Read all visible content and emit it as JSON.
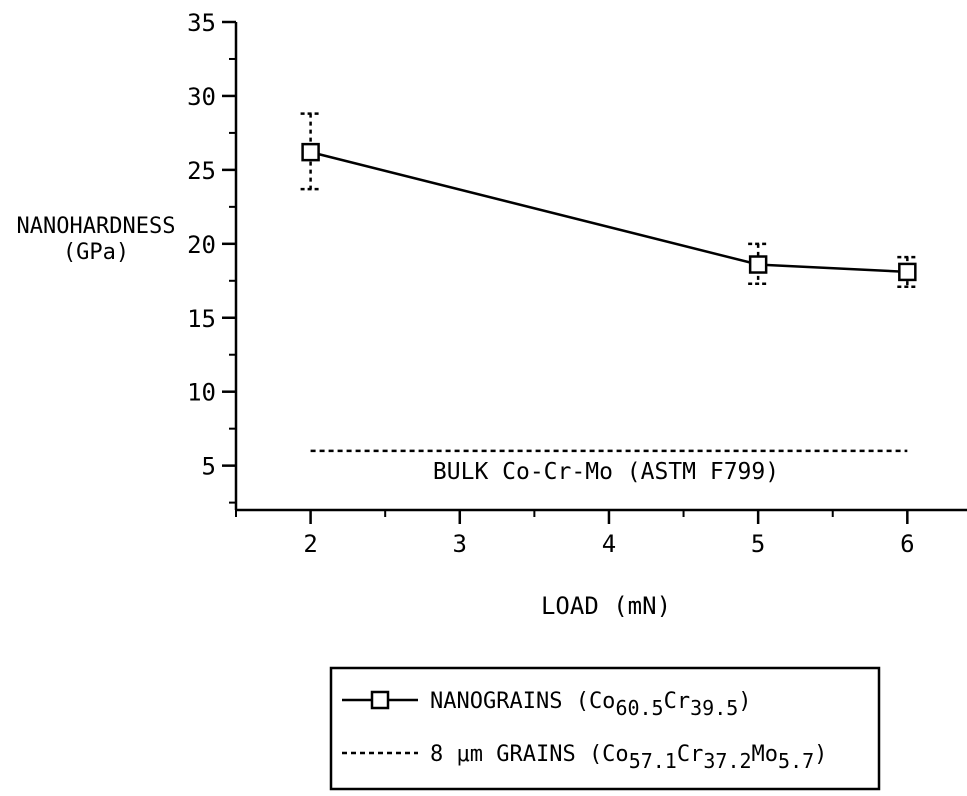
{
  "chart_data": {
    "type": "line",
    "ylabel_line1": "NANOHARDNESS",
    "ylabel_line2": "(GPa)",
    "xlabel": "LOAD (mN)",
    "xlim": [
      1.5,
      6.4
    ],
    "ylim": [
      2,
      35
    ],
    "x_ticks": [
      2,
      3,
      4,
      5,
      6
    ],
    "x_tick_labels": [
      "2",
      "3",
      "4",
      "5",
      "6"
    ],
    "y_ticks": [
      5,
      10,
      15,
      20,
      25,
      30,
      35
    ],
    "y_tick_labels": [
      "5",
      "10",
      "15",
      "20",
      "25",
      "30",
      "35"
    ],
    "grid": false,
    "legend_position": "bottom-center",
    "series": [
      {
        "style": "solid-square-markers",
        "x": [
          2,
          5,
          6
        ],
        "y": [
          26.2,
          18.6,
          18.1
        ],
        "error_low": [
          23.7,
          17.3,
          17.1
        ],
        "error_high": [
          28.8,
          20.0,
          19.1
        ]
      }
    ],
    "reference_line": {
      "style": "dashed",
      "y": 6,
      "x_start": 2,
      "x_end": 6,
      "label": "BULK Co-Cr-Mo (ASTM F799)"
    },
    "legend": [
      {
        "style": "solid-square",
        "label_prefix": "NANOGRAINS (Co",
        "parts": [
          {
            "text": "60.5",
            "sub": true
          },
          {
            "text": "Cr",
            "sub": false
          },
          {
            "text": "39.5",
            "sub": true
          },
          {
            "text": ")",
            "sub": false
          }
        ]
      },
      {
        "style": "dashed",
        "label_prefix": "8 μm GRAINS (Co",
        "parts": [
          {
            "text": "57.1",
            "sub": true
          },
          {
            "text": "Cr",
            "sub": false
          },
          {
            "text": "37.2",
            "sub": true
          },
          {
            "text": "Mo",
            "sub": false
          },
          {
            "text": "5.7",
            "sub": true
          },
          {
            "text": ")",
            "sub": false
          }
        ]
      }
    ]
  }
}
